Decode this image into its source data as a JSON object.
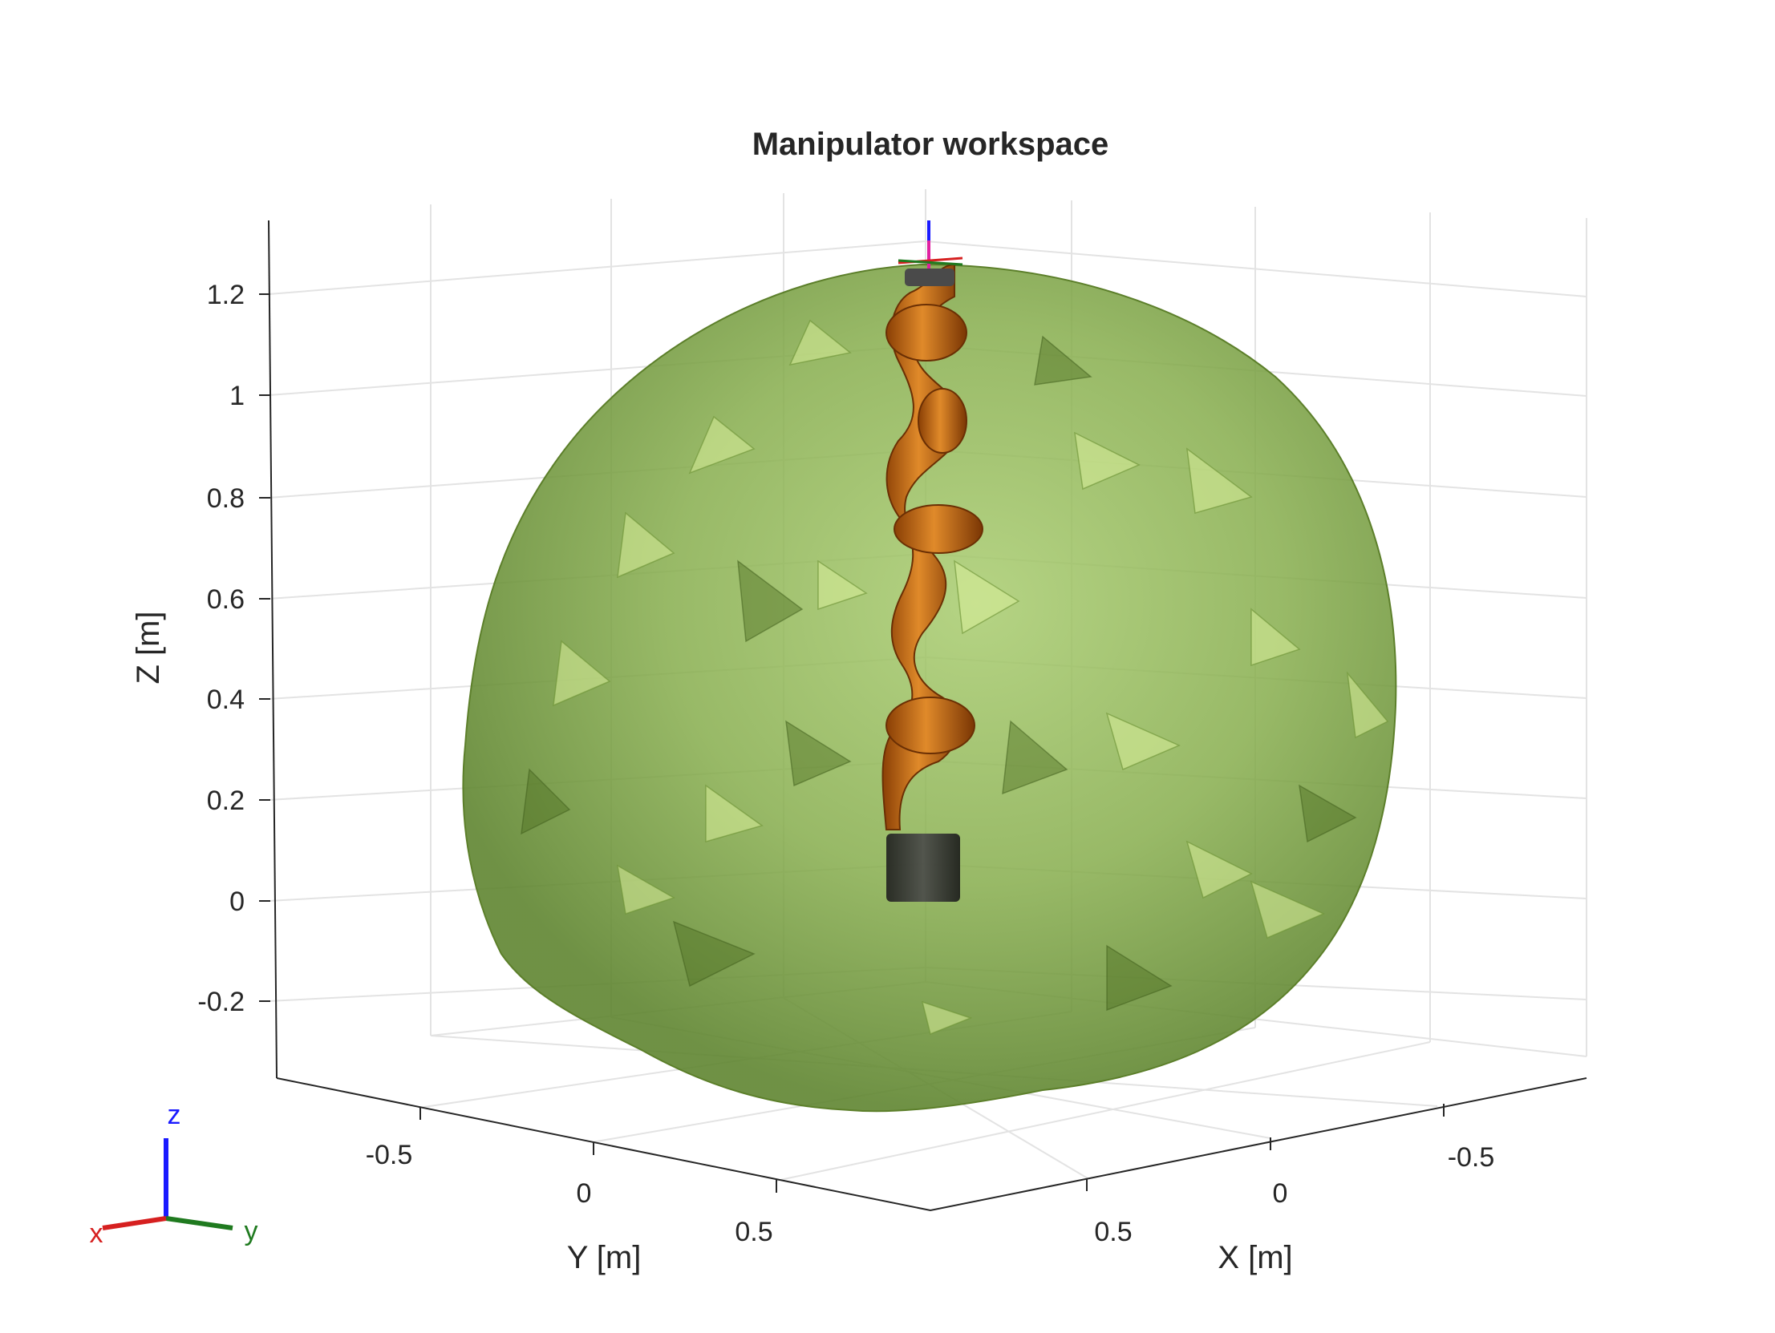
{
  "title": "Manipulator workspace",
  "axes": {
    "xlabel": "X [m]",
    "ylabel": "Y [m]",
    "zlabel": "Z [m]",
    "x_ticks": [
      "0.5",
      "0",
      "-0.5"
    ],
    "y_ticks": [
      "-0.5",
      "0",
      "0.5"
    ],
    "z_ticks": [
      "1.2",
      "1",
      "0.8",
      "0.6",
      "0.4",
      "0.2",
      "0",
      "-0.2"
    ]
  },
  "triad": {
    "x": "x",
    "y": "y",
    "z": "z"
  },
  "colors": {
    "workspace": "#7fa845",
    "workspace_edge": "#5c7f2a",
    "robot": "#c8650f",
    "robot_base": "#3c3c3c",
    "grid": "#e0e0e0",
    "axis_x": "#d62020",
    "axis_y": "#1f7a1f",
    "axis_z": "#1a1aff"
  }
}
